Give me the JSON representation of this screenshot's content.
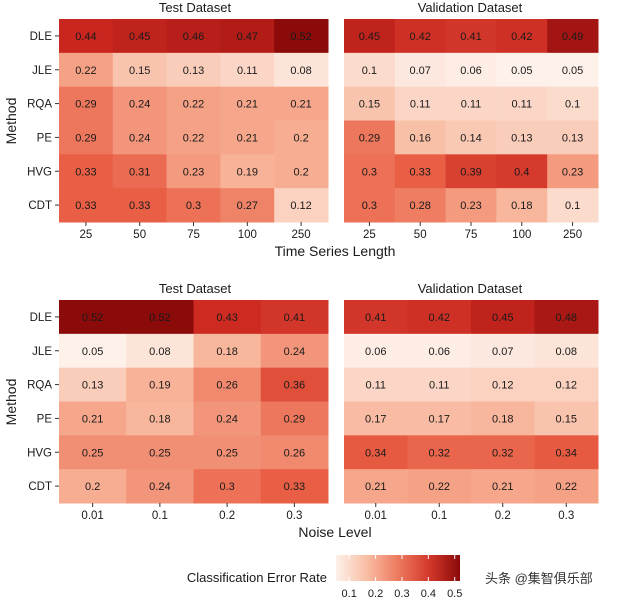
{
  "chart_data": [
    {
      "type": "heatmap",
      "title": "Test Dataset",
      "xlabel": "Time Series Length",
      "ylabel": "Method",
      "x": [
        "25",
        "50",
        "75",
        "100",
        "250"
      ],
      "y": [
        "DLE",
        "JLE",
        "RQA",
        "PE",
        "HVG",
        "CDT"
      ],
      "values": [
        [
          0.44,
          0.45,
          0.46,
          0.47,
          0.52
        ],
        [
          0.22,
          0.15,
          0.13,
          0.11,
          0.08
        ],
        [
          0.29,
          0.24,
          0.22,
          0.21,
          0.21
        ],
        [
          0.29,
          0.24,
          0.22,
          0.21,
          0.2
        ],
        [
          0.33,
          0.31,
          0.23,
          0.19,
          0.2
        ],
        [
          0.33,
          0.33,
          0.3,
          0.27,
          0.12
        ]
      ]
    },
    {
      "type": "heatmap",
      "title": "Validation Dataset",
      "xlabel": "Time Series Length",
      "ylabel": "",
      "x": [
        "25",
        "50",
        "75",
        "100",
        "250"
      ],
      "y": [
        "DLE",
        "JLE",
        "RQA",
        "PE",
        "HVG",
        "CDT"
      ],
      "values": [
        [
          0.45,
          0.42,
          0.41,
          0.42,
          0.49
        ],
        [
          0.1,
          0.07,
          0.06,
          0.05,
          0.05
        ],
        [
          0.15,
          0.11,
          0.11,
          0.11,
          0.1
        ],
        [
          0.29,
          0.16,
          0.14,
          0.13,
          0.13
        ],
        [
          0.3,
          0.33,
          0.39,
          0.4,
          0.23
        ],
        [
          0.3,
          0.28,
          0.23,
          0.18,
          0.1
        ]
      ]
    },
    {
      "type": "heatmap",
      "title": "Test Dataset",
      "xlabel": "Noise Level",
      "ylabel": "Method",
      "x": [
        "0.01",
        "0.1",
        "0.2",
        "0.3"
      ],
      "y": [
        "DLE",
        "JLE",
        "RQA",
        "PE",
        "HVG",
        "CDT"
      ],
      "values": [
        [
          0.52,
          0.52,
          0.43,
          0.41
        ],
        [
          0.05,
          0.08,
          0.18,
          0.24
        ],
        [
          0.13,
          0.19,
          0.26,
          0.36
        ],
        [
          0.21,
          0.18,
          0.24,
          0.29
        ],
        [
          0.25,
          0.25,
          0.25,
          0.26
        ],
        [
          0.2,
          0.24,
          0.3,
          0.33
        ]
      ]
    },
    {
      "type": "heatmap",
      "title": "Validation Dataset",
      "xlabel": "Noise Level",
      "ylabel": "",
      "x": [
        "0.01",
        "0.1",
        "0.2",
        "0.3"
      ],
      "y": [
        "DLE",
        "JLE",
        "RQA",
        "PE",
        "HVG",
        "CDT"
      ],
      "values": [
        [
          0.41,
          0.42,
          0.45,
          0.48
        ],
        [
          0.06,
          0.06,
          0.07,
          0.08
        ],
        [
          0.11,
          0.11,
          0.12,
          0.12
        ],
        [
          0.17,
          0.17,
          0.18,
          0.15
        ],
        [
          0.34,
          0.32,
          0.32,
          0.34
        ],
        [
          0.21,
          0.22,
          0.21,
          0.22
        ]
      ]
    }
  ],
  "legend": {
    "title": "Classification Error Rate",
    "ticks": [
      "0.1",
      "0.2",
      "0.3",
      "0.4",
      "0.5"
    ],
    "scale_min": 0.05,
    "scale_max": 0.52,
    "color_low": "#fdf1ea",
    "color_high": "#8b0a0a"
  },
  "watermark": "头条 @集智俱乐部"
}
